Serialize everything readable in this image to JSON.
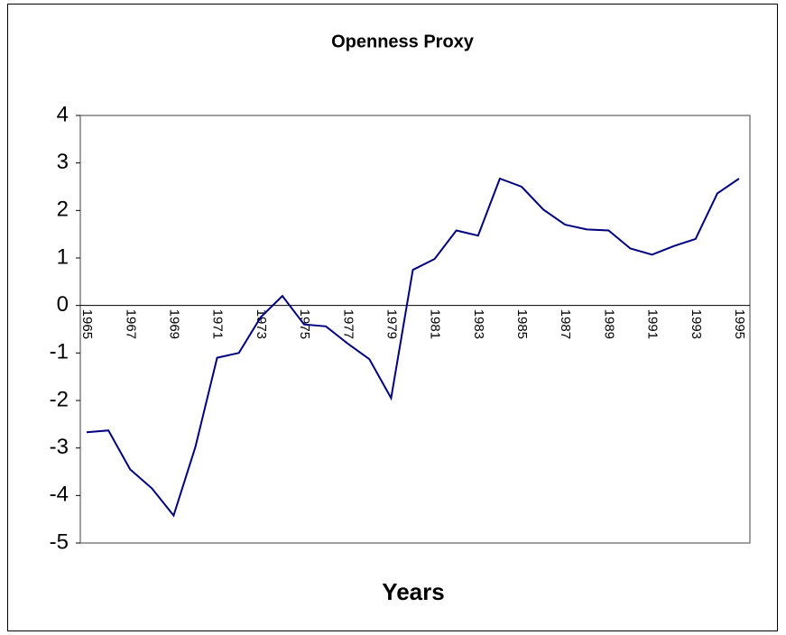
{
  "chart_data": {
    "type": "line",
    "title": "Openness Proxy",
    "x_label": "Years",
    "categories": [
      "1965",
      null,
      "1967",
      null,
      "1969",
      null,
      "1971",
      null,
      "1973",
      null,
      "1975",
      null,
      "1977",
      null,
      "1979",
      null,
      "1981",
      null,
      "1983",
      null,
      "1985",
      null,
      "1987",
      null,
      "1989",
      null,
      "1991",
      null,
      "1993",
      null,
      "1995"
    ],
    "series": [
      {
        "name": "Openness Proxy",
        "color": "#000080",
        "values": [
          -2.67,
          -2.63,
          -3.45,
          -3.85,
          -4.42,
          -2.98,
          -1.1,
          -1.0,
          -0.25,
          0.2,
          -0.4,
          -0.44,
          -0.8,
          -1.13,
          -1.95,
          0.75,
          0.98,
          1.58,
          1.47,
          2.67,
          2.5,
          2.02,
          1.7,
          1.6,
          1.58,
          1.2,
          1.07,
          1.25,
          1.4,
          2.36,
          2.67
        ]
      }
    ],
    "ylim": [
      -5,
      4
    ],
    "yticks": [
      -5,
      -4,
      -3,
      -2,
      -1,
      0,
      1,
      2,
      3,
      4
    ]
  }
}
